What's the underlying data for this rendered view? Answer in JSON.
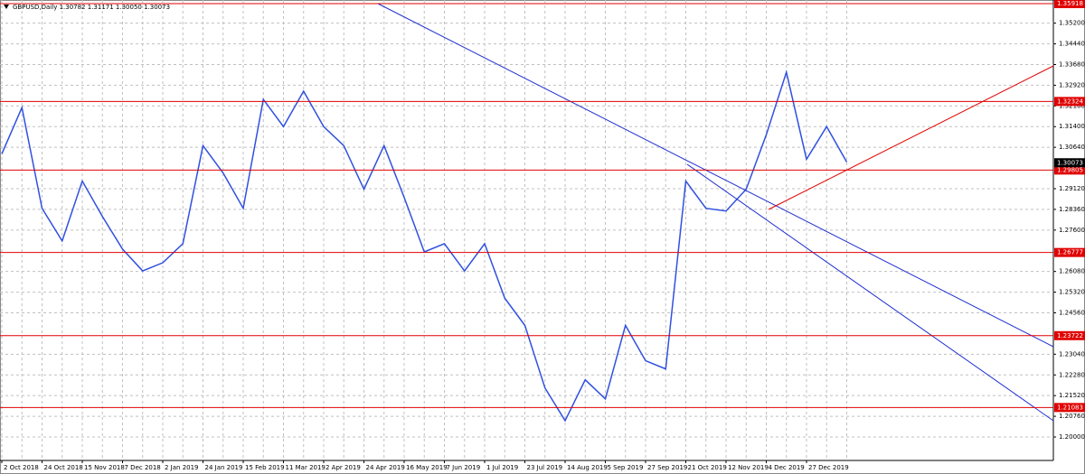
{
  "chart_data": {
    "type": "line",
    "title": "GBPUSD,Daily  1.30782 1.31171 1.30050 1.30073",
    "categories": [
      "2 Oct 2018",
      null,
      "24 Oct 2018",
      null,
      "15 Nov 2018",
      null,
      "7 Dec 2018",
      null,
      "2 Jan 2019",
      null,
      "24 Jan 2019",
      null,
      "15 Feb 2019",
      null,
      "11 Mar 2019",
      null,
      "2 Apr 2019",
      null,
      "24 Apr 2019",
      null,
      "16 May 2019",
      null,
      "7 Jun 2019",
      null,
      "1 Jul 2019",
      null,
      "23 Jul 2019",
      null,
      "14 Aug 2019",
      null,
      "5 Sep 2019",
      null,
      "27 Sep 2019",
      null,
      "21 Oct 2019",
      null,
      "12 Nov 2019",
      null,
      "4 Dec 2019",
      null,
      "27 Dec 2019",
      null,
      null
    ],
    "values": [
      1.304,
      1.321,
      1.284,
      1.272,
      1.294,
      1.281,
      1.269,
      1.261,
      1.264,
      1.271,
      1.307,
      1.297,
      1.284,
      1.324,
      1.314,
      1.327,
      1.314,
      1.307,
      1.291,
      1.307,
      1.288,
      1.268,
      1.271,
      1.261,
      1.271,
      1.251,
      1.241,
      1.218,
      1.206,
      1.221,
      1.214,
      1.241,
      1.228,
      1.225,
      1.294,
      1.284,
      1.283,
      1.291,
      1.311,
      1.334,
      1.302,
      1.314,
      1.301
    ],
    "color": "#3050e0",
    "ylim": [
      1.19138,
      1.36051
    ],
    "yticks": [
      {
        "value": 1.352,
        "label": "1.35200"
      },
      {
        "value": 1.3444,
        "label": "1.34440"
      },
      {
        "value": 1.3368,
        "label": "1.33680"
      },
      {
        "value": 1.3292,
        "label": "1.32920"
      },
      {
        "value": 1.3216,
        "label": "1.32160"
      },
      {
        "value": 1.314,
        "label": "1.31400"
      },
      {
        "value": 1.3064,
        "label": "1.30640"
      },
      {
        "value": 1.2912,
        "label": "1.29120"
      },
      {
        "value": 1.2836,
        "label": "1.28360"
      },
      {
        "value": 1.276,
        "label": "1.27600"
      },
      {
        "value": 1.2608,
        "label": "1.26080"
      },
      {
        "value": 1.2532,
        "label": "1.25320"
      },
      {
        "value": 1.2456,
        "label": "1.24560"
      },
      {
        "value": 1.2304,
        "label": "1.23040"
      },
      {
        "value": 1.2228,
        "label": "1.22280"
      },
      {
        "value": 1.2152,
        "label": "1.21520"
      },
      {
        "value": 1.2076,
        "label": "1.20760"
      },
      {
        "value": 1.2,
        "label": "1.20000"
      }
    ],
    "levels": [
      1.35918,
      1.32324,
      1.29805,
      1.26777,
      1.23722,
      1.21083
    ],
    "level_color": "#e00000",
    "current_price": 1.30073,
    "grid": true
  }
}
